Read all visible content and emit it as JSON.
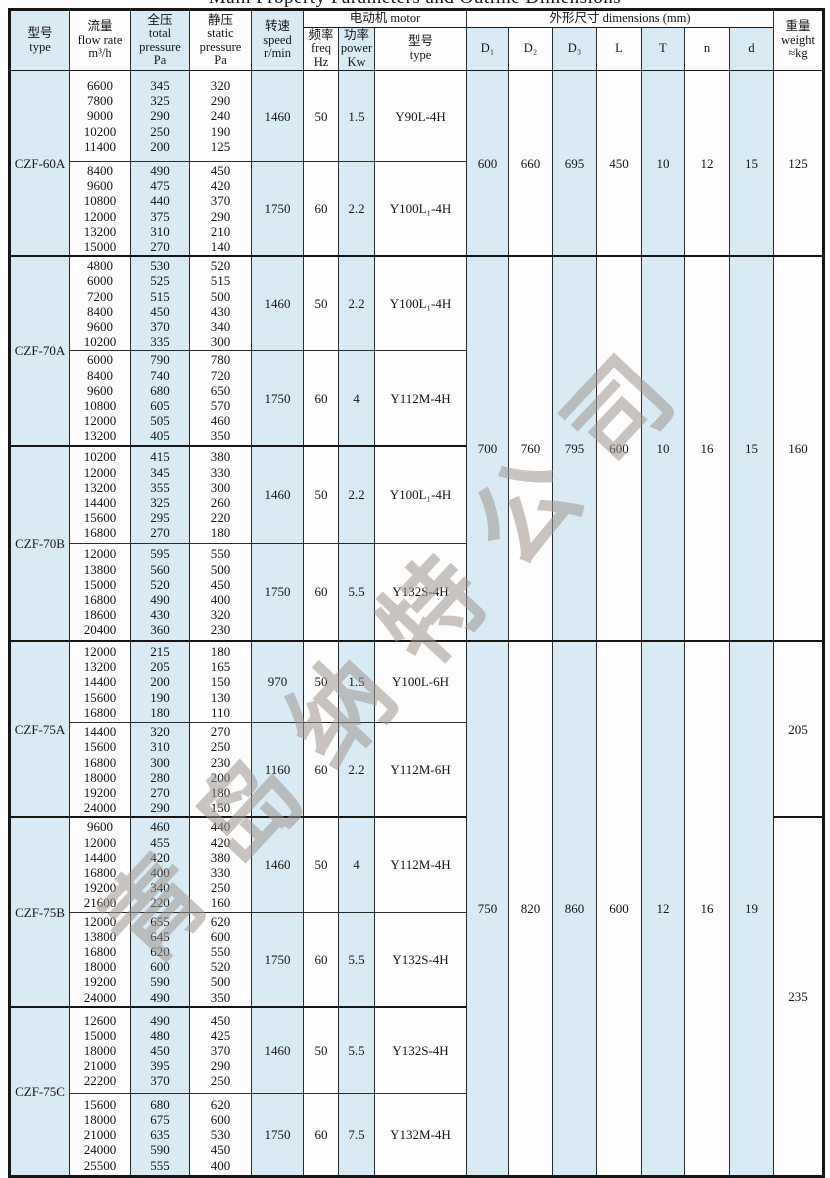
{
  "title": "Main Property Parameters and Outline Dimensions",
  "watermark": "青岛纳特公司",
  "colors": {
    "column_shade": "#d8ebf5",
    "border": "#161616",
    "watermark_gray": "#9e968e"
  },
  "header": {
    "type": [
      "型号",
      "type"
    ],
    "flow": [
      "流量",
      "flow rate",
      "m³/h"
    ],
    "total_pressure": [
      "全压",
      "total",
      "pressure",
      "Pa"
    ],
    "static_pressure": [
      "静压",
      "static",
      "pressure",
      "Pa"
    ],
    "speed": [
      "转速",
      "speed",
      "r/min"
    ],
    "motor_group": "电动机  motor",
    "freq": [
      "频率",
      "freq",
      "Hz"
    ],
    "power": [
      "功率",
      "power",
      "Kw"
    ],
    "motor_type": [
      "型号",
      "type"
    ],
    "dims_group": "外形尺寸    dimensions (mm)",
    "d1": "D₁",
    "d2": "D₂",
    "d3": "D₃",
    "L": "L",
    "T": "T",
    "n": "n",
    "d": "d",
    "weight": [
      "重量",
      "weight",
      "≈kg"
    ]
  },
  "groups": [
    {
      "type": "CZF-60A",
      "subrows": [
        {
          "flow": [
            6600,
            7800,
            9000,
            10200,
            11400
          ],
          "total": [
            345,
            325,
            290,
            250,
            200
          ],
          "static": [
            320,
            290,
            240,
            190,
            125
          ],
          "speed": 1460,
          "freq": 50,
          "power": 1.5,
          "motor": "Y90L-4H"
        },
        {
          "flow": [
            8400,
            9600,
            10800,
            12000,
            13200,
            15000
          ],
          "total": [
            490,
            475,
            440,
            375,
            310,
            270
          ],
          "static": [
            450,
            420,
            370,
            290,
            210,
            140
          ],
          "speed": 1750,
          "freq": 60,
          "power": 2.2,
          "motor": "Y100L₁-4H"
        }
      ]
    },
    {
      "type": "CZF-70A",
      "subrows": [
        {
          "flow": [
            4800,
            6000,
            7200,
            8400,
            9600,
            10200
          ],
          "total": [
            530,
            525,
            515,
            450,
            370,
            335
          ],
          "static": [
            520,
            515,
            500,
            430,
            340,
            300
          ],
          "speed": 1460,
          "freq": 50,
          "power": 2.2,
          "motor": "Y100L₁-4H"
        },
        {
          "flow": [
            6000,
            8400,
            9600,
            10800,
            12000,
            13200
          ],
          "total": [
            790,
            740,
            680,
            605,
            505,
            405
          ],
          "static": [
            780,
            720,
            650,
            570,
            460,
            350
          ],
          "speed": 1750,
          "freq": 60,
          "power": 4,
          "motor": "Y112M-4H"
        }
      ]
    },
    {
      "type": "CZF-70B",
      "subrows": [
        {
          "flow": [
            10200,
            12000,
            13200,
            14400,
            15600,
            16800
          ],
          "total": [
            415,
            345,
            355,
            325,
            295,
            270
          ],
          "static": [
            380,
            330,
            300,
            260,
            220,
            180
          ],
          "speed": 1460,
          "freq": 50,
          "power": 2.2,
          "motor": "Y100L₁-4H"
        },
        {
          "flow": [
            12000,
            13800,
            15000,
            16800,
            18600,
            20400
          ],
          "total": [
            595,
            560,
            520,
            490,
            430,
            360
          ],
          "static": [
            550,
            500,
            450,
            400,
            320,
            230
          ],
          "speed": 1750,
          "freq": 60,
          "power": 5.5,
          "motor": "Y132S-4H"
        }
      ]
    },
    {
      "type": "CZF-75A",
      "subrows": [
        {
          "flow": [
            12000,
            13200,
            14400,
            15600,
            16800
          ],
          "total": [
            215,
            205,
            200,
            190,
            180
          ],
          "static": [
            180,
            165,
            150,
            130,
            110
          ],
          "speed": 970,
          "freq": 50,
          "power": 1.5,
          "motor": "Y100L-6H"
        },
        {
          "flow": [
            14400,
            15600,
            16800,
            18000,
            19200,
            24000
          ],
          "total": [
            320,
            310,
            300,
            280,
            270,
            290
          ],
          "static": [
            270,
            250,
            230,
            200,
            180,
            150
          ],
          "speed": 1160,
          "freq": 60,
          "power": 2.2,
          "motor": "Y112M-6H"
        }
      ]
    },
    {
      "type": "CZF-75B",
      "subrows": [
        {
          "flow": [
            9600,
            12000,
            14400,
            16800,
            19200,
            21600
          ],
          "total": [
            460,
            455,
            420,
            400,
            340,
            220
          ],
          "static": [
            440,
            420,
            380,
            330,
            250,
            160
          ],
          "speed": 1460,
          "freq": 50,
          "power": 4,
          "motor": "Y112M-4H"
        },
        {
          "flow": [
            12000,
            13800,
            16800,
            18000,
            19200,
            24000
          ],
          "total": [
            655,
            645,
            620,
            600,
            590,
            490
          ],
          "static": [
            620,
            600,
            550,
            520,
            500,
            350
          ],
          "speed": 1750,
          "freq": 60,
          "power": 5.5,
          "motor": "Y132S-4H"
        }
      ]
    },
    {
      "type": "CZF-75C",
      "subrows": [
        {
          "flow": [
            12600,
            15000,
            18000,
            21000,
            22200
          ],
          "total": [
            490,
            480,
            450,
            395,
            370
          ],
          "static": [
            450,
            425,
            370,
            290,
            250
          ],
          "speed": 1460,
          "freq": 50,
          "power": 5.5,
          "motor": "Y132S-4H"
        },
        {
          "flow": [
            15600,
            18000,
            21000,
            24000,
            25500
          ],
          "total": [
            680,
            675,
            635,
            590,
            555
          ],
          "static": [
            620,
            600,
            530,
            450,
            400
          ],
          "speed": 1750,
          "freq": 60,
          "power": 7.5,
          "motor": "Y132M-4H"
        }
      ]
    }
  ],
  "dim_spans": [
    {
      "D1": 600,
      "D2": 660,
      "D3": 695,
      "L": 450,
      "T": 10,
      "n": 12,
      "d": 15
    },
    {
      "D1": 700,
      "D2": 760,
      "D3": 795,
      "L": 600,
      "T": 10,
      "n": 16,
      "d": 15
    },
    {
      "D1": 750,
      "D2": 820,
      "D3": 860,
      "L": 600,
      "T": 12,
      "n": 16,
      "d": 19
    }
  ],
  "weight_spans": [
    125,
    160,
    205,
    235
  ]
}
